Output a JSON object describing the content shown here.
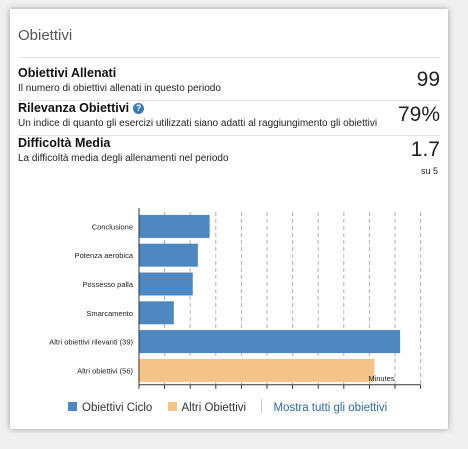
{
  "card": {
    "title": "Obiettivi"
  },
  "metrics": [
    {
      "label": "Obiettivi Allenati",
      "description": "Il numero di obiettivi allenati in questo periodo",
      "value": "99"
    },
    {
      "label": "Rilevanza Obiettivi",
      "description": "Un indice di quanto gli esercizi utilizzati siano adatti al raggiungimento gli obiettivi",
      "value": "79%"
    },
    {
      "label": "Difficoltà Media",
      "description": "La difficoltà media degli allenamenti nel periodo",
      "value": "1.7",
      "sub": "su 5"
    }
  ],
  "icons": {
    "help": "question-circle-icon",
    "help_glyph": "?"
  },
  "colors": {
    "cycle": "#4d88c1",
    "other": "#f4c387",
    "link": "#2f6aa3"
  },
  "chart_data": {
    "type": "bar",
    "orientation": "horizontal",
    "categories": [
      "Conclusione",
      "Potenza aerobica",
      "Possesso palla",
      "Smarcamento",
      "Altri obiettivi rilevanti (39)",
      "Altri obiettivi (56)"
    ],
    "values": [
      1380,
      1150,
      1050,
      680,
      5100,
      4600
    ],
    "series_index": [
      0,
      0,
      0,
      0,
      0,
      1
    ],
    "x_ticks": [
      "0",
      "500",
      "1000",
      "1500",
      "2000",
      "2500",
      "3000",
      "3500",
      "4000",
      "4500",
      "5000",
      "5500"
    ],
    "xlim": [
      0,
      5500
    ],
    "xlabel": "Minutes",
    "legend": [
      "Obiettivi Ciclo",
      "Altri Obiettivi"
    ],
    "legend_placement": "bottom"
  },
  "legend_link": "Mostra tutti gli obiettivi"
}
